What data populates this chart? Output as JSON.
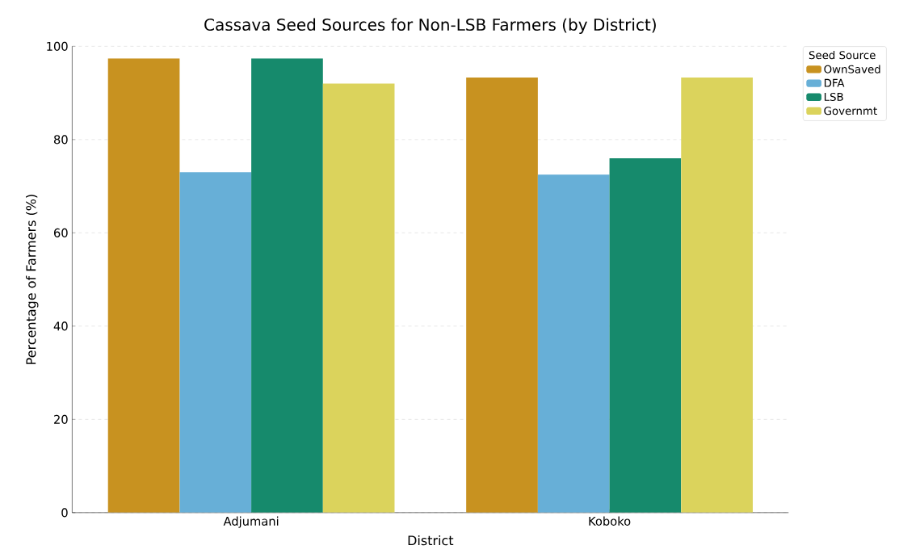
{
  "chart_data": {
    "type": "bar",
    "title": "Cassava Seed Sources for Non-LSB Farmers (by District)",
    "xlabel": "District",
    "ylabel": "Percentage of Farmers (%)",
    "legend_title": "Seed Source",
    "categories": [
      "Adjumani",
      "Koboko"
    ],
    "series": [
      {
        "name": "OwnSaved",
        "color": "#c89220",
        "values": [
          97.4,
          93.3
        ]
      },
      {
        "name": "DFA",
        "color": "#67afd7",
        "values": [
          73.0,
          72.5
        ]
      },
      {
        "name": "LSB",
        "color": "#168a6c",
        "values": [
          97.4,
          76.0
        ]
      },
      {
        "name": "Governmt",
        "color": "#dbd35c",
        "values": [
          92.0,
          93.3
        ]
      }
    ],
    "ylim": [
      0,
      100
    ],
    "yticks": [
      0,
      20,
      40,
      60,
      80,
      100
    ],
    "grid": "y",
    "legend": "top right"
  }
}
